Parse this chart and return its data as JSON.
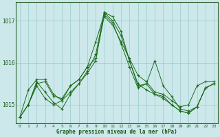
{
  "background_color": "#cce8ea",
  "grid_color": "#99cccc",
  "line_color": "#1a6b1a",
  "xlabel": "Graphe pression niveau de la mer (hPa)",
  "yticks": [
    1015,
    1016,
    1017
  ],
  "xlim": [
    -0.5,
    23.5
  ],
  "ylim": [
    1014.55,
    1017.45
  ],
  "series": [
    [
      1014.7,
      1015.0,
      1015.5,
      1015.55,
      1015.2,
      1015.15,
      1015.45,
      1015.6,
      1015.9,
      1016.1,
      1017.1,
      1016.9,
      1016.5,
      1016.1,
      1015.7,
      1015.55,
      1015.3,
      1015.25,
      1015.1,
      1014.95,
      1015.0,
      1015.45,
      1015.55,
      1015.55
    ],
    [
      1014.7,
      1015.35,
      1015.6,
      1015.6,
      1015.25,
      1015.1,
      1015.45,
      1015.6,
      1015.9,
      1016.5,
      1017.15,
      1016.95,
      1016.45,
      1015.9,
      1015.4,
      1015.5,
      1016.05,
      1015.45,
      1015.2,
      1014.9,
      1014.85,
      1014.95,
      1015.4,
      1015.5
    ],
    [
      1014.7,
      1015.0,
      1015.55,
      1015.3,
      1015.05,
      1014.9,
      1015.25,
      1015.5,
      1015.8,
      1016.2,
      1017.2,
      1017.1,
      1016.75,
      1016.05,
      1015.45,
      1015.5,
      1015.25,
      1015.15,
      1015.0,
      1014.85,
      1014.8,
      1014.95,
      1015.4,
      1015.5
    ],
    [
      1014.7,
      1015.0,
      1015.45,
      1015.15,
      1015.0,
      1015.1,
      1015.3,
      1015.5,
      1015.75,
      1016.05,
      1017.2,
      1017.0,
      1016.65,
      1016.05,
      1015.5,
      1015.35,
      1015.25,
      1015.2,
      1015.0,
      1014.85,
      1014.8,
      1014.95,
      1015.4,
      1015.5
    ]
  ]
}
